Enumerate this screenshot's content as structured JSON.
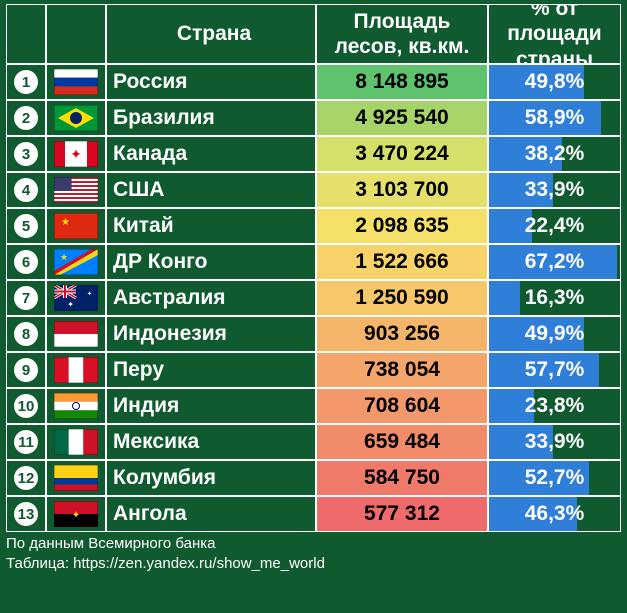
{
  "header": {
    "country": "Страна",
    "area": "Площадь лесов, кв.км.",
    "pct": "% от площади страны"
  },
  "max_area": 8148895,
  "area_gradient": {
    "top": "#5fc36e",
    "mid1": "#d4e06a",
    "mid2": "#f5e06a",
    "low1": "#f4b46a",
    "low2": "#f28b6a",
    "bottom": "#ef6a6a"
  },
  "pct_bar_color": "#2f7ed8",
  "rows": [
    {
      "rank": 1,
      "country": "Россия",
      "area": "8 148 895",
      "area_num": 8148895,
      "pct": "49,8%",
      "pct_num": 49.8,
      "area_color": "#5fc36e",
      "flag": {
        "type": "h3",
        "c": [
          "#ffffff",
          "#0039a6",
          "#d52b1e"
        ]
      }
    },
    {
      "rank": 2,
      "country": "Бразилия",
      "area": "4 925 540",
      "area_num": 4925540,
      "pct": "58,9%",
      "pct_num": 58.9,
      "area_color": "#a6d468",
      "flag": {
        "type": "br"
      }
    },
    {
      "rank": 3,
      "country": "Канада",
      "area": "3 470 224",
      "area_num": 3470224,
      "pct": "38,2%",
      "pct_num": 38.2,
      "area_color": "#d4e06a",
      "flag": {
        "type": "ca"
      }
    },
    {
      "rank": 4,
      "country": "США",
      "area": "3 103 700",
      "area_num": 3103700,
      "pct": "33,9%",
      "pct_num": 33.9,
      "area_color": "#e5e06a",
      "flag": {
        "type": "us"
      }
    },
    {
      "rank": 5,
      "country": "Китай",
      "area": "2 098 635",
      "area_num": 2098635,
      "pct": "22,4%",
      "pct_num": 22.4,
      "area_color": "#f5e06a",
      "flag": {
        "type": "cn"
      }
    },
    {
      "rank": 6,
      "country": "ДР Конго",
      "area": "1 522 666",
      "area_num": 1522666,
      "pct": "67,2%",
      "pct_num": 67.2,
      "area_color": "#f7d36a",
      "flag": {
        "type": "cd"
      }
    },
    {
      "rank": 7,
      "country": "Австралия",
      "area": "1 250 590",
      "area_num": 1250590,
      "pct": "16,3%",
      "pct_num": 16.3,
      "area_color": "#f7c86a",
      "flag": {
        "type": "au"
      }
    },
    {
      "rank": 8,
      "country": "Индонезия",
      "area": "903 256",
      "area_num": 903256,
      "pct": "49,9%",
      "pct_num": 49.9,
      "area_color": "#f4b46a",
      "flag": {
        "type": "h2",
        "c": [
          "#ce1126",
          "#ffffff"
        ]
      }
    },
    {
      "rank": 9,
      "country": "Перу",
      "area": "738 054",
      "area_num": 738054,
      "pct": "57,7%",
      "pct_num": 57.7,
      "area_color": "#f3a56a",
      "flag": {
        "type": "v3",
        "c": [
          "#d91023",
          "#ffffff",
          "#d91023"
        ]
      }
    },
    {
      "rank": 10,
      "country": "Индия",
      "area": "708 604",
      "area_num": 708604,
      "pct": "23,8%",
      "pct_num": 23.8,
      "area_color": "#f2986a",
      "flag": {
        "type": "in"
      }
    },
    {
      "rank": 11,
      "country": "Мексика",
      "area": "659 484",
      "area_num": 659484,
      "pct": "33,9%",
      "pct_num": 33.9,
      "area_color": "#f28b6a",
      "flag": {
        "type": "v3",
        "c": [
          "#006847",
          "#ffffff",
          "#ce1126"
        ]
      }
    },
    {
      "rank": 12,
      "country": "Колумбия",
      "area": "584 750",
      "area_num": 584750,
      "pct": "52,7%",
      "pct_num": 52.7,
      "area_color": "#f07a6a",
      "flag": {
        "type": "co"
      }
    },
    {
      "rank": 13,
      "country": "Ангола",
      "area": "577 312",
      "area_num": 577312,
      "pct": "46,3%",
      "pct_num": 46.3,
      "area_color": "#ef6a6a",
      "flag": {
        "type": "ao"
      }
    }
  ],
  "footer": {
    "line1": "По данным Всемирного банка",
    "line2": "Таблица: https://zen.yandex.ru/show_me_world"
  }
}
